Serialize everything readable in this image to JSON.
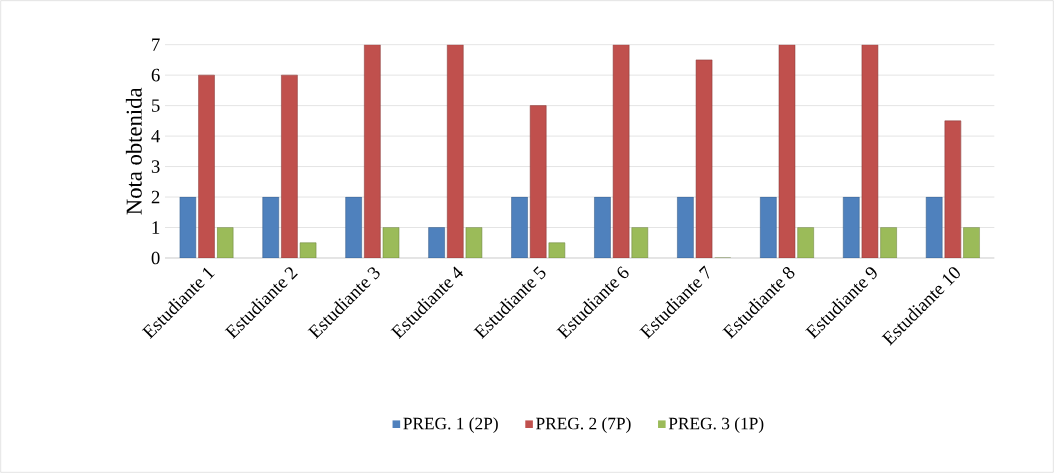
{
  "chart_data": {
    "type": "bar",
    "ylabel": "Nota obtenida",
    "categories": [
      "Estudiante 1",
      "Estudiante 2",
      "Estudiante 3",
      "Estudiante 4",
      "Estudiante 5",
      "Estudiante 6",
      "Estudiante 7",
      "Estudiante 8",
      "Estudiante 9",
      "Estudiante 10"
    ],
    "series": [
      {
        "name": "PREG. 1 (2P)",
        "color": "#4f81bd",
        "values": [
          2,
          2,
          2,
          1,
          2,
          2,
          2,
          2,
          2,
          2
        ]
      },
      {
        "name": "PREG. 2 (7P)",
        "color": "#c0504d",
        "values": [
          6,
          6,
          7,
          7,
          5,
          7,
          6.5,
          7,
          7,
          4.5
        ]
      },
      {
        "name": "PREG. 3 (1P)",
        "color": "#9bbb59",
        "values": [
          1,
          0.5,
          1,
          1,
          0.5,
          1,
          0,
          1,
          1,
          1
        ]
      }
    ],
    "ylim": [
      0,
      7
    ],
    "yticks": [
      0,
      1,
      2,
      3,
      4,
      5,
      6,
      7
    ],
    "grid": "y",
    "legend": "bottom"
  }
}
